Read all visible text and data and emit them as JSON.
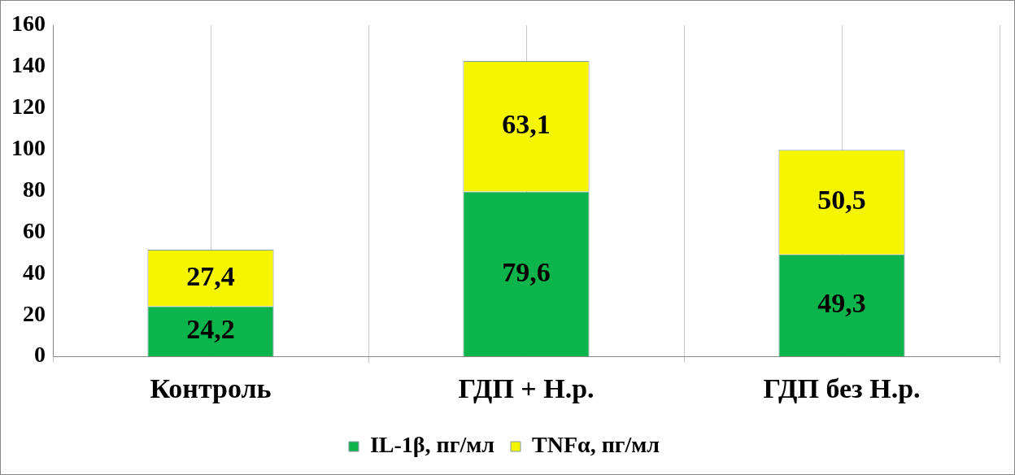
{
  "chart_data": {
    "type": "bar",
    "stacked": true,
    "categories": [
      "Контроль",
      "ГДП + Н.р.",
      "ГДП без Н.р."
    ],
    "series": [
      {
        "name": "IL-1β, пг/мл",
        "color": "#0cb44c",
        "values": [
          24.2,
          79.6,
          49.3
        ],
        "value_labels": [
          "24,2",
          "79,6",
          "49,3"
        ]
      },
      {
        "name": "TNFα, пг/мл",
        "color": "#f5f500",
        "values": [
          27.4,
          63.1,
          50.5
        ],
        "value_labels": [
          "27,4",
          "63,1",
          "50,5"
        ]
      }
    ],
    "ylim": [
      0,
      160
    ],
    "yticks": [
      0,
      20,
      40,
      60,
      80,
      100,
      120,
      140,
      160
    ],
    "grid": "x",
    "legend": "bottom"
  }
}
